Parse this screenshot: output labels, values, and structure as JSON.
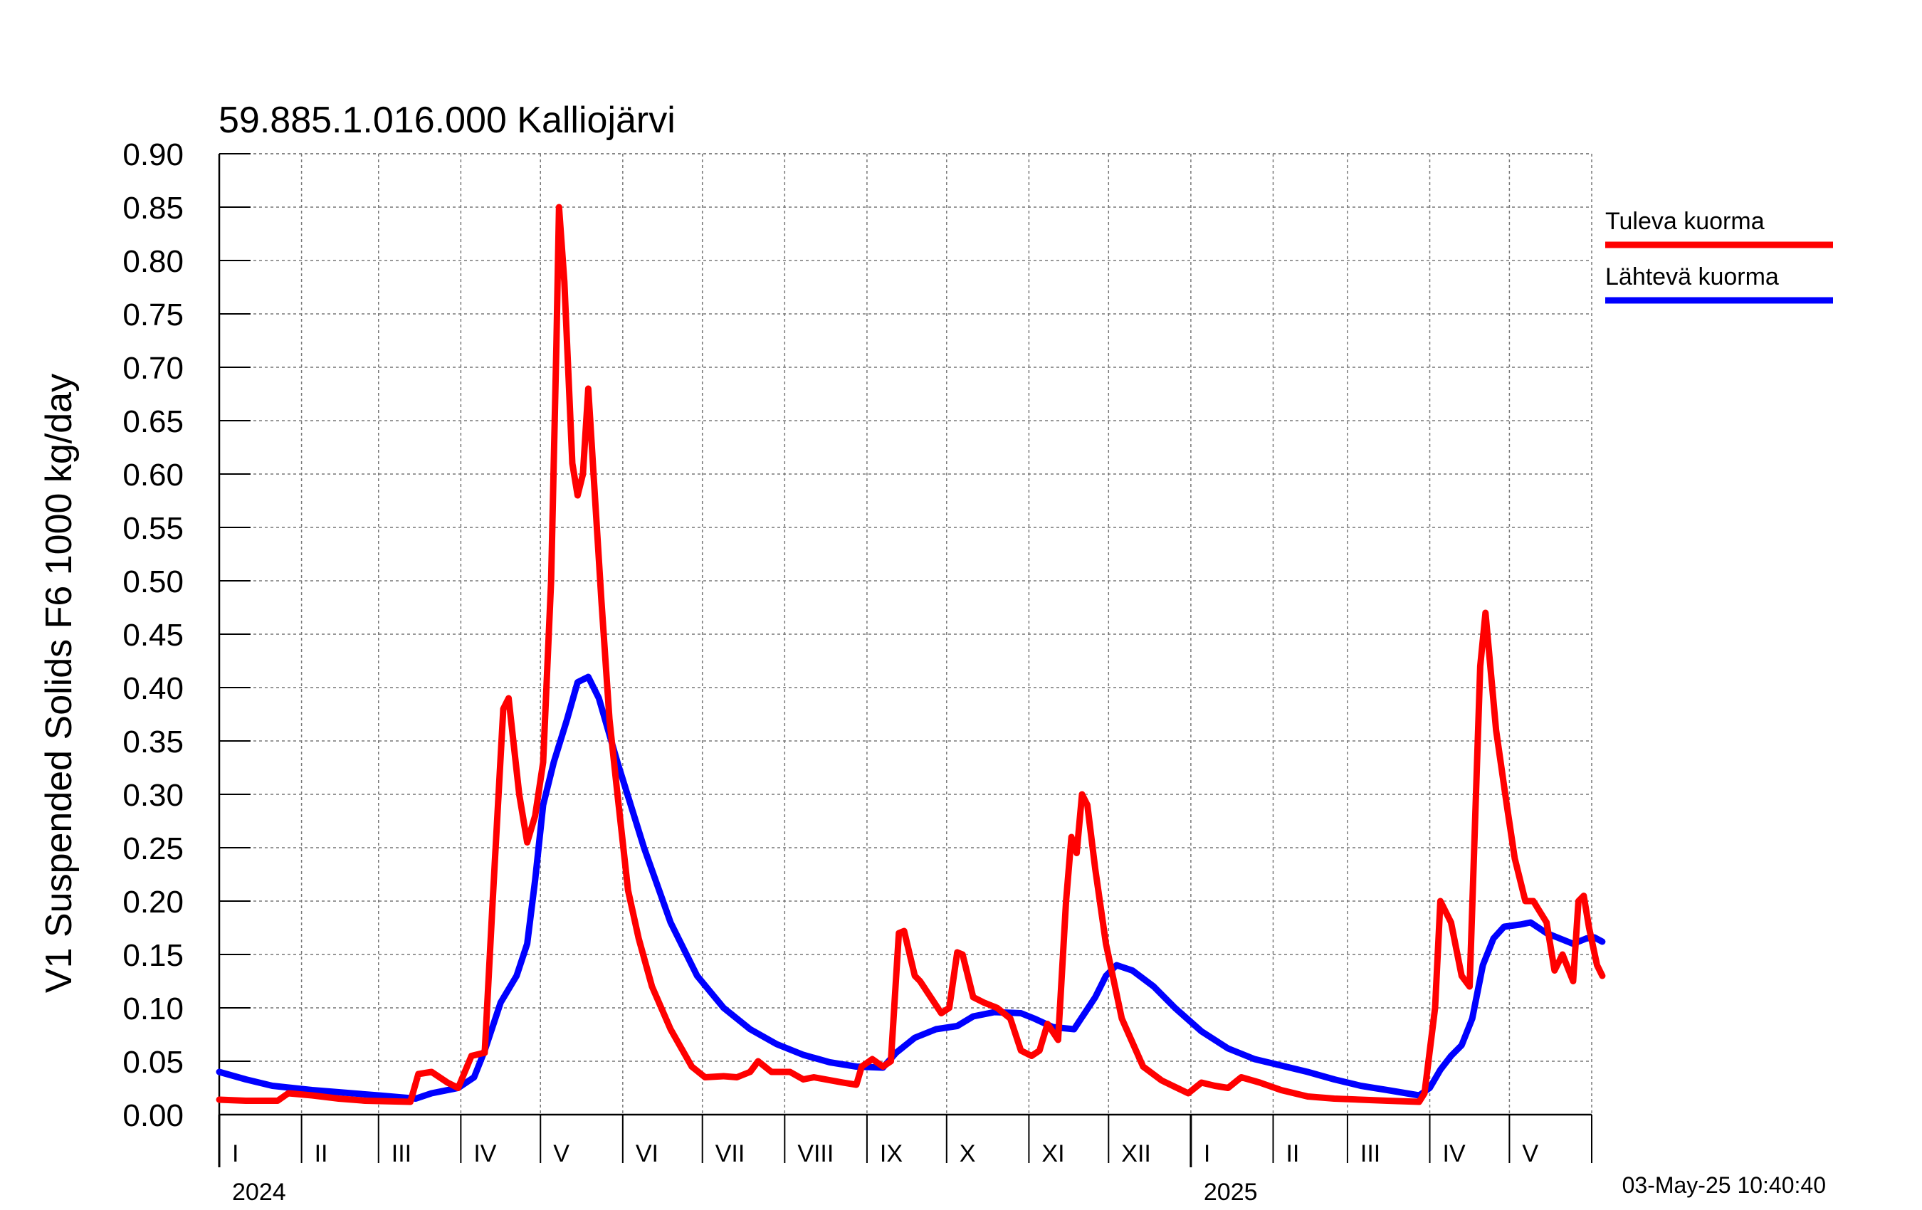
{
  "chart_data": {
    "type": "line",
    "title": "59.885.1.016.000 Kalliojärvi",
    "ylabel": "V1 Suspended Solids F6 1000 kg/day",
    "xlabel": "",
    "ylim": [
      0,
      0.9
    ],
    "y_ticks": [
      "0.00",
      "0.05",
      "0.10",
      "0.15",
      "0.20",
      "0.25",
      "0.30",
      "0.35",
      "0.40",
      "0.45",
      "0.50",
      "0.55",
      "0.60",
      "0.65",
      "0.70",
      "0.75",
      "0.80",
      "0.85",
      "0.90"
    ],
    "x_range_days": [
      0,
      517
    ],
    "months": [
      {
        "label": "I",
        "start": 0
      },
      {
        "label": "II",
        "start": 31
      },
      {
        "label": "III",
        "start": 60
      },
      {
        "label": "IV",
        "start": 91
      },
      {
        "label": "V",
        "start": 121
      },
      {
        "label": "VI",
        "start": 152
      },
      {
        "label": "VII",
        "start": 182
      },
      {
        "label": "VIII",
        "start": 213
      },
      {
        "label": "IX",
        "start": 244
      },
      {
        "label": "X",
        "start": 274
      },
      {
        "label": "XI",
        "start": 305
      },
      {
        "label": "XII",
        "start": 335
      },
      {
        "label": "I",
        "start": 366
      },
      {
        "label": "II",
        "start": 397
      },
      {
        "label": "III",
        "start": 425
      },
      {
        "label": "IV",
        "start": 456
      },
      {
        "label": "V",
        "start": 486
      }
    ],
    "years": [
      {
        "label": "2024",
        "start": 0
      },
      {
        "label": "2025",
        "start": 366
      }
    ],
    "grid": true,
    "legend_position": "right",
    "timestamp": "03-May-25 10:40:40",
    "series": [
      {
        "name": "Tuleva kuorma",
        "color": "#ff0000",
        "points": [
          [
            0,
            0.014
          ],
          [
            10,
            0.013
          ],
          [
            22,
            0.013
          ],
          [
            26,
            0.02
          ],
          [
            35,
            0.018
          ],
          [
            45,
            0.015
          ],
          [
            55,
            0.013
          ],
          [
            72,
            0.012
          ],
          [
            75,
            0.038
          ],
          [
            80,
            0.04
          ],
          [
            86,
            0.03
          ],
          [
            90,
            0.025
          ],
          [
            95,
            0.055
          ],
          [
            100,
            0.058
          ],
          [
            103,
            0.2
          ],
          [
            107,
            0.38
          ],
          [
            109,
            0.39
          ],
          [
            113,
            0.3
          ],
          [
            116,
            0.255
          ],
          [
            119,
            0.28
          ],
          [
            122,
            0.33
          ],
          [
            125,
            0.5
          ],
          [
            127,
            0.72
          ],
          [
            128,
            0.85
          ],
          [
            130,
            0.78
          ],
          [
            133,
            0.61
          ],
          [
            135,
            0.58
          ],
          [
            137,
            0.6
          ],
          [
            139,
            0.68
          ],
          [
            141,
            0.6
          ],
          [
            144,
            0.48
          ],
          [
            147,
            0.37
          ],
          [
            150,
            0.3
          ],
          [
            154,
            0.21
          ],
          [
            158,
            0.165
          ],
          [
            163,
            0.12
          ],
          [
            170,
            0.08
          ],
          [
            178,
            0.045
          ],
          [
            183,
            0.035
          ],
          [
            190,
            0.036
          ],
          [
            195,
            0.035
          ],
          [
            200,
            0.04
          ],
          [
            203,
            0.05
          ],
          [
            208,
            0.04
          ],
          [
            215,
            0.04
          ],
          [
            220,
            0.033
          ],
          [
            224,
            0.035
          ],
          [
            235,
            0.03
          ],
          [
            240,
            0.028
          ],
          [
            242,
            0.045
          ],
          [
            246,
            0.052
          ],
          [
            250,
            0.045
          ],
          [
            253,
            0.05
          ],
          [
            256,
            0.17
          ],
          [
            258,
            0.172
          ],
          [
            262,
            0.13
          ],
          [
            264,
            0.125
          ],
          [
            268,
            0.11
          ],
          [
            272,
            0.095
          ],
          [
            275,
            0.1
          ],
          [
            278,
            0.152
          ],
          [
            280,
            0.15
          ],
          [
            284,
            0.11
          ],
          [
            288,
            0.105
          ],
          [
            293,
            0.1
          ],
          [
            298,
            0.09
          ],
          [
            302,
            0.06
          ],
          [
            306,
            0.055
          ],
          [
            309,
            0.06
          ],
          [
            312,
            0.085
          ],
          [
            316,
            0.07
          ],
          [
            319,
            0.2
          ],
          [
            321,
            0.26
          ],
          [
            323,
            0.245
          ],
          [
            325,
            0.3
          ],
          [
            327,
            0.29
          ],
          [
            330,
            0.23
          ],
          [
            334,
            0.16
          ],
          [
            340,
            0.09
          ],
          [
            348,
            0.045
          ],
          [
            355,
            0.032
          ],
          [
            365,
            0.02
          ],
          [
            370,
            0.03
          ],
          [
            375,
            0.027
          ],
          [
            380,
            0.025
          ],
          [
            385,
            0.035
          ],
          [
            392,
            0.03
          ],
          [
            400,
            0.023
          ],
          [
            410,
            0.017
          ],
          [
            420,
            0.015
          ],
          [
            440,
            0.013
          ],
          [
            452,
            0.012
          ],
          [
            454,
            0.02
          ],
          [
            458,
            0.1
          ],
          [
            460,
            0.2
          ],
          [
            464,
            0.18
          ],
          [
            468,
            0.13
          ],
          [
            471,
            0.12
          ],
          [
            475,
            0.42
          ],
          [
            477,
            0.47
          ],
          [
            481,
            0.36
          ],
          [
            485,
            0.29
          ],
          [
            488,
            0.24
          ],
          [
            492,
            0.2
          ],
          [
            495,
            0.2
          ],
          [
            500,
            0.18
          ],
          [
            503,
            0.135
          ],
          [
            506,
            0.15
          ],
          [
            510,
            0.125
          ],
          [
            512,
            0.2
          ],
          [
            514,
            0.205
          ],
          [
            516,
            0.175
          ],
          [
            519,
            0.14
          ],
          [
            521,
            0.13
          ]
        ]
      },
      {
        "name": "Lähtevä kuorma",
        "color": "#0000ff",
        "points": [
          [
            0,
            0.04
          ],
          [
            10,
            0.033
          ],
          [
            20,
            0.027
          ],
          [
            35,
            0.023
          ],
          [
            50,
            0.02
          ],
          [
            60,
            0.018
          ],
          [
            74,
            0.015
          ],
          [
            80,
            0.02
          ],
          [
            90,
            0.025
          ],
          [
            96,
            0.035
          ],
          [
            100,
            0.06
          ],
          [
            106,
            0.105
          ],
          [
            112,
            0.13
          ],
          [
            116,
            0.16
          ],
          [
            119,
            0.22
          ],
          [
            122,
            0.29
          ],
          [
            126,
            0.33
          ],
          [
            131,
            0.37
          ],
          [
            135,
            0.405
          ],
          [
            139,
            0.41
          ],
          [
            143,
            0.39
          ],
          [
            150,
            0.33
          ],
          [
            160,
            0.25
          ],
          [
            170,
            0.18
          ],
          [
            180,
            0.13
          ],
          [
            190,
            0.1
          ],
          [
            200,
            0.08
          ],
          [
            210,
            0.066
          ],
          [
            220,
            0.056
          ],
          [
            230,
            0.049
          ],
          [
            240,
            0.045
          ],
          [
            250,
            0.044
          ],
          [
            255,
            0.058
          ],
          [
            262,
            0.072
          ],
          [
            270,
            0.08
          ],
          [
            278,
            0.083
          ],
          [
            284,
            0.092
          ],
          [
            292,
            0.096
          ],
          [
            302,
            0.095
          ],
          [
            307,
            0.09
          ],
          [
            314,
            0.082
          ],
          [
            322,
            0.08
          ],
          [
            330,
            0.11
          ],
          [
            334,
            0.13
          ],
          [
            338,
            0.14
          ],
          [
            344,
            0.135
          ],
          [
            352,
            0.12
          ],
          [
            360,
            0.1
          ],
          [
            370,
            0.078
          ],
          [
            380,
            0.062
          ],
          [
            390,
            0.052
          ],
          [
            400,
            0.046
          ],
          [
            410,
            0.04
          ],
          [
            420,
            0.033
          ],
          [
            430,
            0.027
          ],
          [
            440,
            0.023
          ],
          [
            452,
            0.018
          ],
          [
            456,
            0.025
          ],
          [
            460,
            0.042
          ],
          [
            464,
            0.055
          ],
          [
            468,
            0.065
          ],
          [
            472,
            0.09
          ],
          [
            476,
            0.14
          ],
          [
            480,
            0.165
          ],
          [
            484,
            0.176
          ],
          [
            490,
            0.178
          ],
          [
            494,
            0.18
          ],
          [
            500,
            0.17
          ],
          [
            505,
            0.165
          ],
          [
            510,
            0.16
          ],
          [
            515,
            0.165
          ],
          [
            518,
            0.166
          ],
          [
            521,
            0.162
          ]
        ]
      }
    ]
  }
}
